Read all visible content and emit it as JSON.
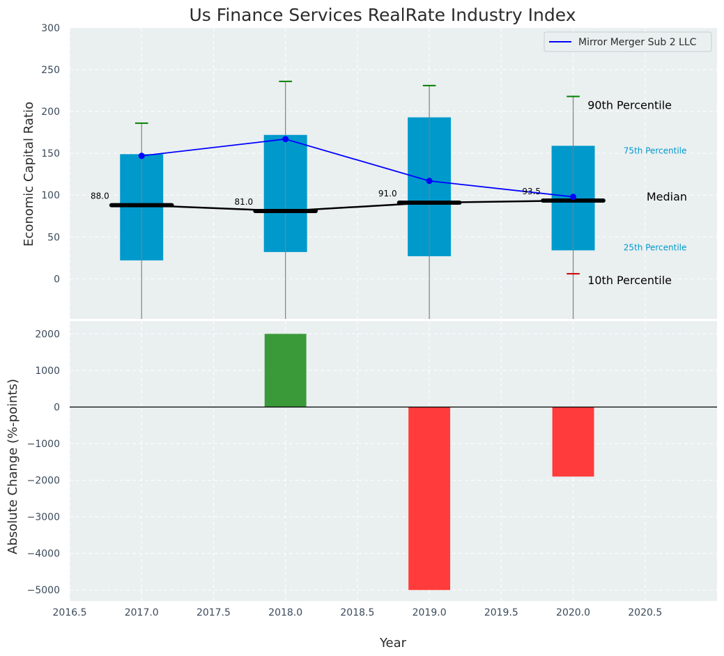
{
  "chart_data": [
    {
      "type": "box",
      "title": "Us Finance Services RealRate Industry Index",
      "ylabel": "Economic Capital Ratio",
      "xlim": [
        2016.5,
        2021.0
      ],
      "ylim": [
        -48,
        300
      ],
      "yticks": [
        "0",
        "50",
        "100",
        "150",
        "200",
        "250",
        "300"
      ],
      "ytick_values": [
        0,
        50,
        100,
        150,
        200,
        250,
        300
      ],
      "grid": true,
      "legend": {
        "position": "top-right",
        "label": "Mirror Merger Sub 2 LLC"
      },
      "colors": {
        "box": "#0099cc",
        "company_line": "#0000ff",
        "median_line": "#000000",
        "p90": "#008000",
        "p10": "#cc0000",
        "whisker": "#808080"
      },
      "boxes": [
        {
          "year": 2017,
          "p25": 22,
          "p75": 149,
          "median": 88.0,
          "median_label": "88.0",
          "p90": 186,
          "p10": null
        },
        {
          "year": 2018,
          "p25": 32,
          "p75": 172,
          "median": 81.0,
          "median_label": "81.0",
          "p90": 236,
          "p10": null
        },
        {
          "year": 2019,
          "p25": 27,
          "p75": 193,
          "median": 91.0,
          "median_label": "91.0",
          "p90": 231,
          "p10": null
        },
        {
          "year": 2020,
          "p25": 34,
          "p75": 159,
          "median": 93.5,
          "median_label": "93.5",
          "p90": 218,
          "p10": 6
        }
      ],
      "series": [
        {
          "name": "Mirror Merger Sub 2 LLC",
          "x": [
            2017,
            2018,
            2019,
            2020
          ],
          "values": [
            147,
            167,
            117,
            98
          ]
        },
        {
          "x": [
            2017,
            2018,
            2019,
            2020
          ],
          "values": [
            88.0,
            81.0,
            91.0,
            93.5
          ]
        }
      ],
      "annotations": {
        "p90": "90th Percentile",
        "p75": "75th Percentile",
        "median": "Median",
        "p25": "25th Percentile",
        "p10": "10th Percentile"
      }
    },
    {
      "type": "bar",
      "xlabel": "Year",
      "ylabel": "Absolute Change (%-points)",
      "xlim": [
        2016.5,
        2021.0
      ],
      "ylim": [
        -5300,
        2350
      ],
      "xticks": [
        "2016.5",
        "2017.0",
        "2017.5",
        "2018.0",
        "2018.5",
        "2019.0",
        "2019.5",
        "2020.0",
        "2020.5"
      ],
      "xtick_values": [
        2016.5,
        2017.0,
        2017.5,
        2018.0,
        2018.5,
        2019.0,
        2019.5,
        2020.0,
        2020.5
      ],
      "yticks": [
        "2000",
        "1000",
        "0",
        "−1000",
        "−2000",
        "−3000",
        "−4000",
        "−5000"
      ],
      "ytick_values": [
        2000,
        1000,
        0,
        -1000,
        -2000,
        -3000,
        -4000,
        -5000
      ],
      "grid": true,
      "colors": {
        "positive": "#3a9a3a",
        "negative": "#ff3b3b"
      },
      "bars": [
        {
          "x": 2018,
          "value": 2000
        },
        {
          "x": 2019,
          "value": -5000
        },
        {
          "x": 2020,
          "value": -1900
        }
      ]
    }
  ]
}
